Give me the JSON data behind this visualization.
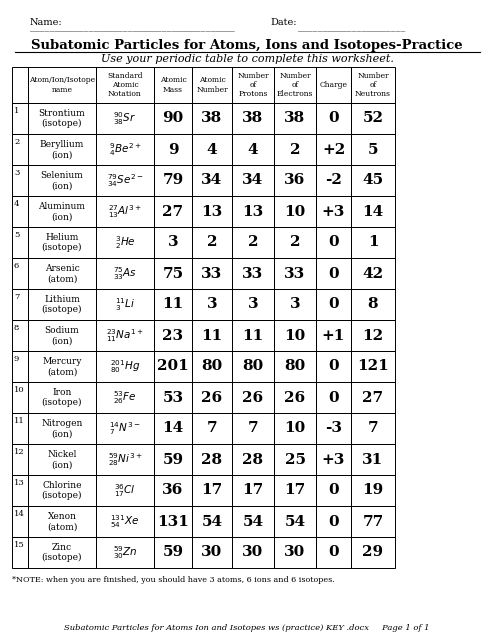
{
  "title": "Subatomic Particles for Atoms, Ions and Isotopes-Practice",
  "subtitle": "Use your periodic table to complete this worksheet.",
  "name_label": "Name:",
  "date_label": "Date:",
  "footer": "Subatomic Particles for Atoms Ion and Isotopes ws (practice) KEY .docx     Page 1 of 1",
  "note": "*NOTE: when you are finished, you should have 3 atoms, 6 ions and 6 isotopes.",
  "col_headers": [
    "",
    "Atom/Ion/Isotope\nname",
    "Standard\nAtomic\nNotation",
    "Atomic\nMass",
    "Atomic\nNumber",
    "Number\nof\nProtons",
    "Number\nof\nElectrons",
    "Charge",
    "Number\nof\nNeutrons"
  ],
  "rows": [
    {
      "num": "1",
      "name": "Strontium\n(isotope)",
      "notation": "$^{90}_{38}Sr$",
      "mass": "90",
      "number": "38",
      "protons": "38",
      "electrons": "38",
      "charge": "0",
      "neutrons": "52"
    },
    {
      "num": "2",
      "name": "Beryllium\n(ion)",
      "notation": "$^{9}_{4}Be^{2+}$",
      "mass": "9",
      "number": "4",
      "protons": "4",
      "electrons": "2",
      "charge": "+2",
      "neutrons": "5"
    },
    {
      "num": "3",
      "name": "Selenium\n(ion)",
      "notation": "$^{79}_{34}Se^{2-}$",
      "mass": "79",
      "number": "34",
      "protons": "34",
      "electrons": "36",
      "charge": "-2",
      "neutrons": "45"
    },
    {
      "num": "4",
      "name": "Aluminum\n(ion)",
      "notation": "$^{27}_{13}Al^{3+}$",
      "mass": "27",
      "number": "13",
      "protons": "13",
      "electrons": "10",
      "charge": "+3",
      "neutrons": "14"
    },
    {
      "num": "5",
      "name": "Helium\n(isotope)",
      "notation": "$^{3}_{2}He$",
      "mass": "3",
      "number": "2",
      "protons": "2",
      "electrons": "2",
      "charge": "0",
      "neutrons": "1"
    },
    {
      "num": "6",
      "name": "Arsenic\n(atom)",
      "notation": "$^{75}_{33}As$",
      "mass": "75",
      "number": "33",
      "protons": "33",
      "electrons": "33",
      "charge": "0",
      "neutrons": "42"
    },
    {
      "num": "7",
      "name": "Lithium\n(isotope)",
      "notation": "$^{11}_{3}Li$",
      "mass": "11",
      "number": "3",
      "protons": "3",
      "electrons": "3",
      "charge": "0",
      "neutrons": "8"
    },
    {
      "num": "8",
      "name": "Sodium\n(ion)",
      "notation": "$^{23}_{11}Na^{1+}$",
      "mass": "23",
      "number": "11",
      "protons": "11",
      "electrons": "10",
      "charge": "+1",
      "neutrons": "12"
    },
    {
      "num": "9",
      "name": "Mercury\n(atom)",
      "notation": "$^{201}_{80}Hg$",
      "mass": "201",
      "number": "80",
      "protons": "80",
      "electrons": "80",
      "charge": "0",
      "neutrons": "121"
    },
    {
      "num": "10",
      "name": "Iron\n(isotope)",
      "notation": "$^{53}_{26}Fe$",
      "mass": "53",
      "number": "26",
      "protons": "26",
      "electrons": "26",
      "charge": "0",
      "neutrons": "27"
    },
    {
      "num": "11",
      "name": "Nitrogen\n(ion)",
      "notation": "$^{14}_{7}N^{3-}$",
      "mass": "14",
      "number": "7",
      "protons": "7",
      "electrons": "10",
      "charge": "-3",
      "neutrons": "7"
    },
    {
      "num": "12",
      "name": "Nickel\n(ion)",
      "notation": "$^{59}_{28}Ni^{3+}$",
      "mass": "59",
      "number": "28",
      "protons": "28",
      "electrons": "25",
      "charge": "+3",
      "neutrons": "31"
    },
    {
      "num": "13",
      "name": "Chlorine\n(isotope)",
      "notation": "$^{36}_{17}Cl$",
      "mass": "36",
      "number": "17",
      "protons": "17",
      "electrons": "17",
      "charge": "0",
      "neutrons": "19"
    },
    {
      "num": "14",
      "name": "Xenon\n(atom)",
      "notation": "$^{131}_{54}Xe$",
      "mass": "131",
      "number": "54",
      "protons": "54",
      "electrons": "54",
      "charge": "0",
      "neutrons": "77"
    },
    {
      "num": "15",
      "name": "Zinc\n(isotope)",
      "notation": "$^{59}_{30}Zn$",
      "mass": "59",
      "number": "30",
      "protons": "30",
      "electrons": "30",
      "charge": "0",
      "neutrons": "29"
    }
  ],
  "bg_color": "#ffffff",
  "text_color": "#000000",
  "line_color": "#000000"
}
